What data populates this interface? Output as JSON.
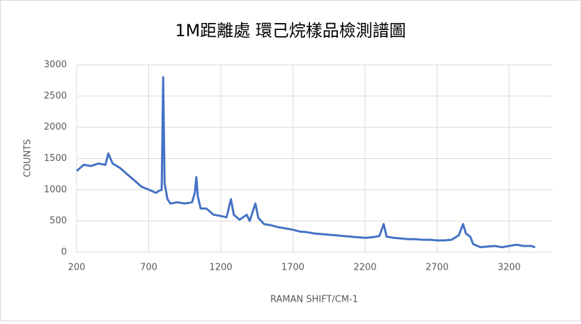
{
  "chart_data": {
    "type": "line",
    "title": "1M距離處  環己烷樣品檢測譜圖",
    "x_label": "RAMAN SHIFT/CM-1",
    "y_label": "COUNTS",
    "x": [
      200,
      250,
      300,
      350,
      400,
      420,
      450,
      500,
      550,
      600,
      650,
      700,
      750,
      770,
      790,
      800,
      810,
      830,
      850,
      900,
      950,
      1000,
      1020,
      1030,
      1040,
      1060,
      1100,
      1150,
      1200,
      1240,
      1270,
      1290,
      1330,
      1380,
      1400,
      1440,
      1460,
      1500,
      1550,
      1600,
      1650,
      1700,
      1750,
      1800,
      1850,
      1900,
      1950,
      2000,
      2050,
      2100,
      2150,
      2200,
      2250,
      2300,
      2330,
      2350,
      2400,
      2450,
      2500,
      2550,
      2600,
      2650,
      2700,
      2750,
      2800,
      2850,
      2880,
      2900,
      2930,
      2950,
      3000,
      3050,
      3100,
      3150,
      3200,
      3250,
      3300,
      3350,
      3380
    ],
    "series": [
      {
        "name": "COUNTS",
        "color": "#4472c4",
        "values": [
          1300,
          1400,
          1380,
          1420,
          1400,
          1580,
          1420,
          1350,
          1250,
          1150,
          1050,
          1000,
          950,
          980,
          1000,
          2800,
          1100,
          850,
          780,
          800,
          780,
          800,
          950,
          1200,
          900,
          700,
          700,
          600,
          580,
          560,
          850,
          600,
          520,
          600,
          500,
          780,
          550,
          450,
          430,
          400,
          380,
          360,
          330,
          320,
          300,
          290,
          280,
          270,
          260,
          250,
          240,
          230,
          240,
          260,
          450,
          250,
          230,
          220,
          210,
          210,
          200,
          200,
          190,
          190,
          200,
          270,
          450,
          300,
          250,
          130,
          80,
          90,
          100,
          80,
          100,
          120,
          100,
          100,
          80
        ]
      }
    ],
    "xlim": [
      200,
      3500
    ],
    "xticks": [
      200,
      700,
      1200,
      1700,
      2200,
      2700,
      3200
    ],
    "ylim": [
      0,
      3000
    ],
    "yticks": [
      0,
      500,
      1000,
      1500,
      2000,
      2500,
      3000
    ],
    "grid": true
  }
}
